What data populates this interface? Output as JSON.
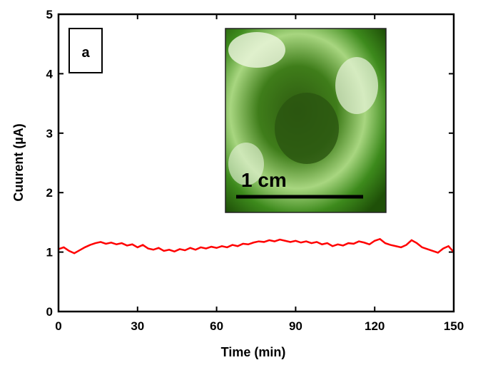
{
  "chart_data": {
    "type": "line",
    "xlabel": "Time (min)",
    "ylabel": "Cuurent (µA)",
    "panel_label": "a",
    "annotations": [
      "1 cm"
    ],
    "xlim": [
      0,
      150
    ],
    "xticks": [
      0,
      30,
      60,
      90,
      120,
      150
    ],
    "ylim": [
      0,
      5
    ],
    "yticks": [
      0,
      1,
      2,
      3,
      4,
      5
    ],
    "grid": false,
    "x": [
      0,
      2,
      4,
      6,
      8,
      10,
      12,
      14,
      16,
      18,
      20,
      22,
      24,
      26,
      28,
      30,
      32,
      34,
      36,
      38,
      40,
      42,
      44,
      46,
      48,
      50,
      52,
      54,
      56,
      58,
      60,
      62,
      64,
      66,
      68,
      70,
      72,
      74,
      76,
      78,
      80,
      82,
      84,
      86,
      88,
      90,
      92,
      94,
      96,
      98,
      100,
      102,
      104,
      106,
      108,
      110,
      112,
      114,
      116,
      118,
      120,
      122,
      124,
      126,
      128,
      130,
      132,
      134,
      136,
      138,
      140,
      142,
      144,
      146,
      148,
      150
    ],
    "series": [
      {
        "color": "#ff0000",
        "values": [
          1.05,
          1.08,
          1.02,
          0.98,
          1.03,
          1.08,
          1.12,
          1.15,
          1.17,
          1.14,
          1.16,
          1.13,
          1.15,
          1.11,
          1.13,
          1.08,
          1.12,
          1.06,
          1.04,
          1.07,
          1.02,
          1.04,
          1.01,
          1.05,
          1.03,
          1.07,
          1.04,
          1.08,
          1.06,
          1.09,
          1.07,
          1.1,
          1.08,
          1.12,
          1.1,
          1.14,
          1.13,
          1.16,
          1.18,
          1.17,
          1.2,
          1.18,
          1.21,
          1.19,
          1.17,
          1.19,
          1.16,
          1.18,
          1.15,
          1.17,
          1.13,
          1.15,
          1.1,
          1.13,
          1.11,
          1.15,
          1.14,
          1.18,
          1.16,
          1.13,
          1.19,
          1.22,
          1.15,
          1.12,
          1.1,
          1.08,
          1.12,
          1.2,
          1.15,
          1.08,
          1.05,
          1.02,
          0.99,
          1.06,
          1.1,
          1.0
        ]
      }
    ]
  }
}
